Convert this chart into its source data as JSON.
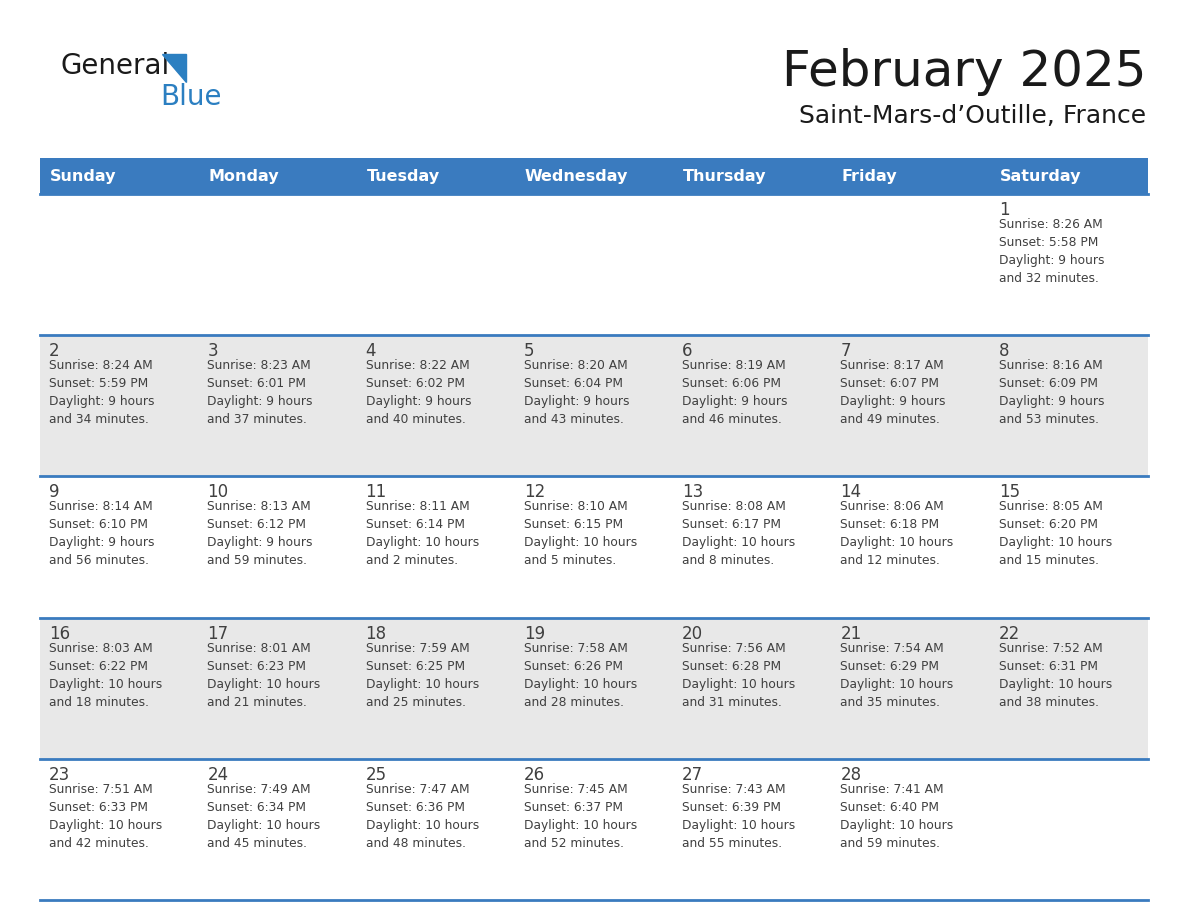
{
  "title": "February 2025",
  "subtitle": "Saint-Mars-d’Outille, France",
  "days_of_week": [
    "Sunday",
    "Monday",
    "Tuesday",
    "Wednesday",
    "Thursday",
    "Friday",
    "Saturday"
  ],
  "header_bg": "#3a7bbf",
  "header_text_color": "#ffffff",
  "row_bg": [
    "#ffffff",
    "#e8e8e8",
    "#ffffff",
    "#e8e8e8",
    "#ffffff"
  ],
  "divider_color": "#3a7bbf",
  "text_color": "#404040",
  "title_color": "#1a1a1a",
  "weeks": [
    [
      {
        "day": null,
        "info": null
      },
      {
        "day": null,
        "info": null
      },
      {
        "day": null,
        "info": null
      },
      {
        "day": null,
        "info": null
      },
      {
        "day": null,
        "info": null
      },
      {
        "day": null,
        "info": null
      },
      {
        "day": 1,
        "info": "Sunrise: 8:26 AM\nSunset: 5:58 PM\nDaylight: 9 hours\nand 32 minutes."
      }
    ],
    [
      {
        "day": 2,
        "info": "Sunrise: 8:24 AM\nSunset: 5:59 PM\nDaylight: 9 hours\nand 34 minutes."
      },
      {
        "day": 3,
        "info": "Sunrise: 8:23 AM\nSunset: 6:01 PM\nDaylight: 9 hours\nand 37 minutes."
      },
      {
        "day": 4,
        "info": "Sunrise: 8:22 AM\nSunset: 6:02 PM\nDaylight: 9 hours\nand 40 minutes."
      },
      {
        "day": 5,
        "info": "Sunrise: 8:20 AM\nSunset: 6:04 PM\nDaylight: 9 hours\nand 43 minutes."
      },
      {
        "day": 6,
        "info": "Sunrise: 8:19 AM\nSunset: 6:06 PM\nDaylight: 9 hours\nand 46 minutes."
      },
      {
        "day": 7,
        "info": "Sunrise: 8:17 AM\nSunset: 6:07 PM\nDaylight: 9 hours\nand 49 minutes."
      },
      {
        "day": 8,
        "info": "Sunrise: 8:16 AM\nSunset: 6:09 PM\nDaylight: 9 hours\nand 53 minutes."
      }
    ],
    [
      {
        "day": 9,
        "info": "Sunrise: 8:14 AM\nSunset: 6:10 PM\nDaylight: 9 hours\nand 56 minutes."
      },
      {
        "day": 10,
        "info": "Sunrise: 8:13 AM\nSunset: 6:12 PM\nDaylight: 9 hours\nand 59 minutes."
      },
      {
        "day": 11,
        "info": "Sunrise: 8:11 AM\nSunset: 6:14 PM\nDaylight: 10 hours\nand 2 minutes."
      },
      {
        "day": 12,
        "info": "Sunrise: 8:10 AM\nSunset: 6:15 PM\nDaylight: 10 hours\nand 5 minutes."
      },
      {
        "day": 13,
        "info": "Sunrise: 8:08 AM\nSunset: 6:17 PM\nDaylight: 10 hours\nand 8 minutes."
      },
      {
        "day": 14,
        "info": "Sunrise: 8:06 AM\nSunset: 6:18 PM\nDaylight: 10 hours\nand 12 minutes."
      },
      {
        "day": 15,
        "info": "Sunrise: 8:05 AM\nSunset: 6:20 PM\nDaylight: 10 hours\nand 15 minutes."
      }
    ],
    [
      {
        "day": 16,
        "info": "Sunrise: 8:03 AM\nSunset: 6:22 PM\nDaylight: 10 hours\nand 18 minutes."
      },
      {
        "day": 17,
        "info": "Sunrise: 8:01 AM\nSunset: 6:23 PM\nDaylight: 10 hours\nand 21 minutes."
      },
      {
        "day": 18,
        "info": "Sunrise: 7:59 AM\nSunset: 6:25 PM\nDaylight: 10 hours\nand 25 minutes."
      },
      {
        "day": 19,
        "info": "Sunrise: 7:58 AM\nSunset: 6:26 PM\nDaylight: 10 hours\nand 28 minutes."
      },
      {
        "day": 20,
        "info": "Sunrise: 7:56 AM\nSunset: 6:28 PM\nDaylight: 10 hours\nand 31 minutes."
      },
      {
        "day": 21,
        "info": "Sunrise: 7:54 AM\nSunset: 6:29 PM\nDaylight: 10 hours\nand 35 minutes."
      },
      {
        "day": 22,
        "info": "Sunrise: 7:52 AM\nSunset: 6:31 PM\nDaylight: 10 hours\nand 38 minutes."
      }
    ],
    [
      {
        "day": 23,
        "info": "Sunrise: 7:51 AM\nSunset: 6:33 PM\nDaylight: 10 hours\nand 42 minutes."
      },
      {
        "day": 24,
        "info": "Sunrise: 7:49 AM\nSunset: 6:34 PM\nDaylight: 10 hours\nand 45 minutes."
      },
      {
        "day": 25,
        "info": "Sunrise: 7:47 AM\nSunset: 6:36 PM\nDaylight: 10 hours\nand 48 minutes."
      },
      {
        "day": 26,
        "info": "Sunrise: 7:45 AM\nSunset: 6:37 PM\nDaylight: 10 hours\nand 52 minutes."
      },
      {
        "day": 27,
        "info": "Sunrise: 7:43 AM\nSunset: 6:39 PM\nDaylight: 10 hours\nand 55 minutes."
      },
      {
        "day": 28,
        "info": "Sunrise: 7:41 AM\nSunset: 6:40 PM\nDaylight: 10 hours\nand 59 minutes."
      },
      {
        "day": null,
        "info": null
      }
    ]
  ],
  "logo_general_color": "#1a1a1a",
  "logo_blue_color": "#2b7fc1",
  "logo_triangle_color": "#2b7fc1",
  "fig_width": 11.88,
  "fig_height": 9.18,
  "fig_dpi": 100
}
